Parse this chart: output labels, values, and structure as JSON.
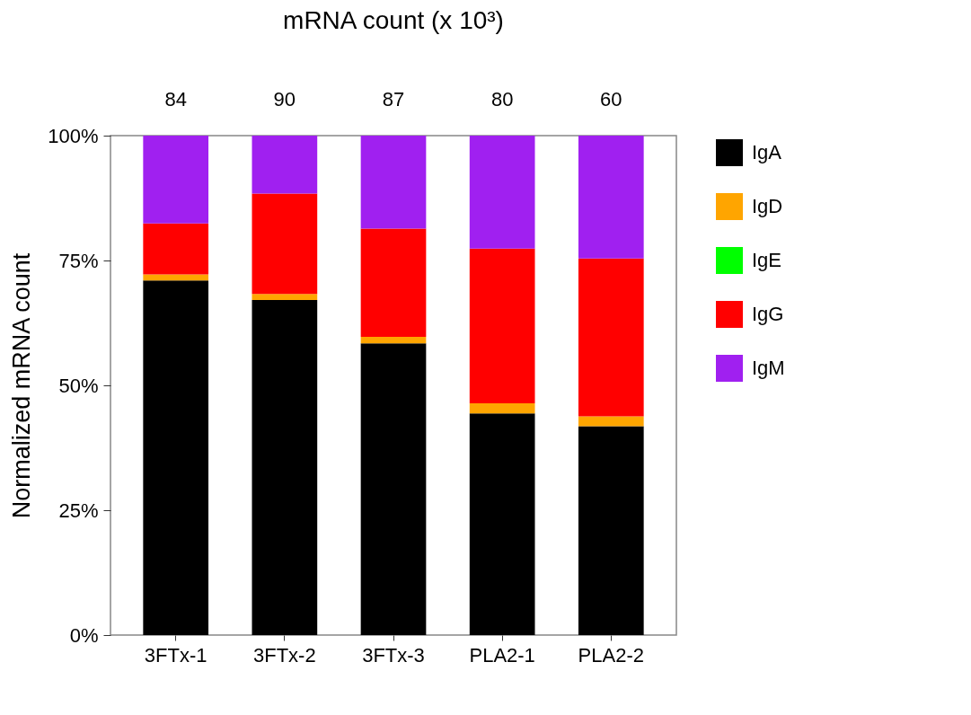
{
  "chart_data": {
    "type": "bar",
    "stacked": true,
    "title": "mRNA count (x 10³)",
    "ylabel": "Normalized mRNA count",
    "categories": [
      "3FTx-1",
      "3FTx-2",
      "3FTx-3",
      "PLA2-1",
      "PLA2-2"
    ],
    "series": [
      {
        "name": "IgA",
        "color": "#000000",
        "values": [
          71.0,
          67.1,
          58.4,
          44.4,
          41.8
        ]
      },
      {
        "name": "IgD",
        "color": "#ffa500",
        "values": [
          1.2,
          1.2,
          1.3,
          2.0,
          2.0
        ]
      },
      {
        "name": "IgE",
        "color": "#00ff00",
        "values": [
          0,
          0,
          0,
          0,
          0
        ]
      },
      {
        "name": "IgG",
        "color": "#ff0000",
        "values": [
          10.2,
          20.1,
          21.7,
          31.0,
          31.6
        ]
      },
      {
        "name": "IgM",
        "color": "#a020f0",
        "values": [
          17.6,
          11.6,
          18.6,
          22.6,
          24.6
        ]
      }
    ],
    "ylim": [
      0,
      100
    ],
    "yticks": [
      {
        "value": 0,
        "label": "0%"
      },
      {
        "value": 25,
        "label": "25%"
      },
      {
        "value": 50,
        "label": "50%"
      },
      {
        "value": 75,
        "label": "75%"
      },
      {
        "value": 100,
        "label": "100%"
      }
    ],
    "grid": false,
    "legend": "right",
    "annotations": [
      "84",
      "90",
      "87",
      "80",
      "60"
    ]
  }
}
